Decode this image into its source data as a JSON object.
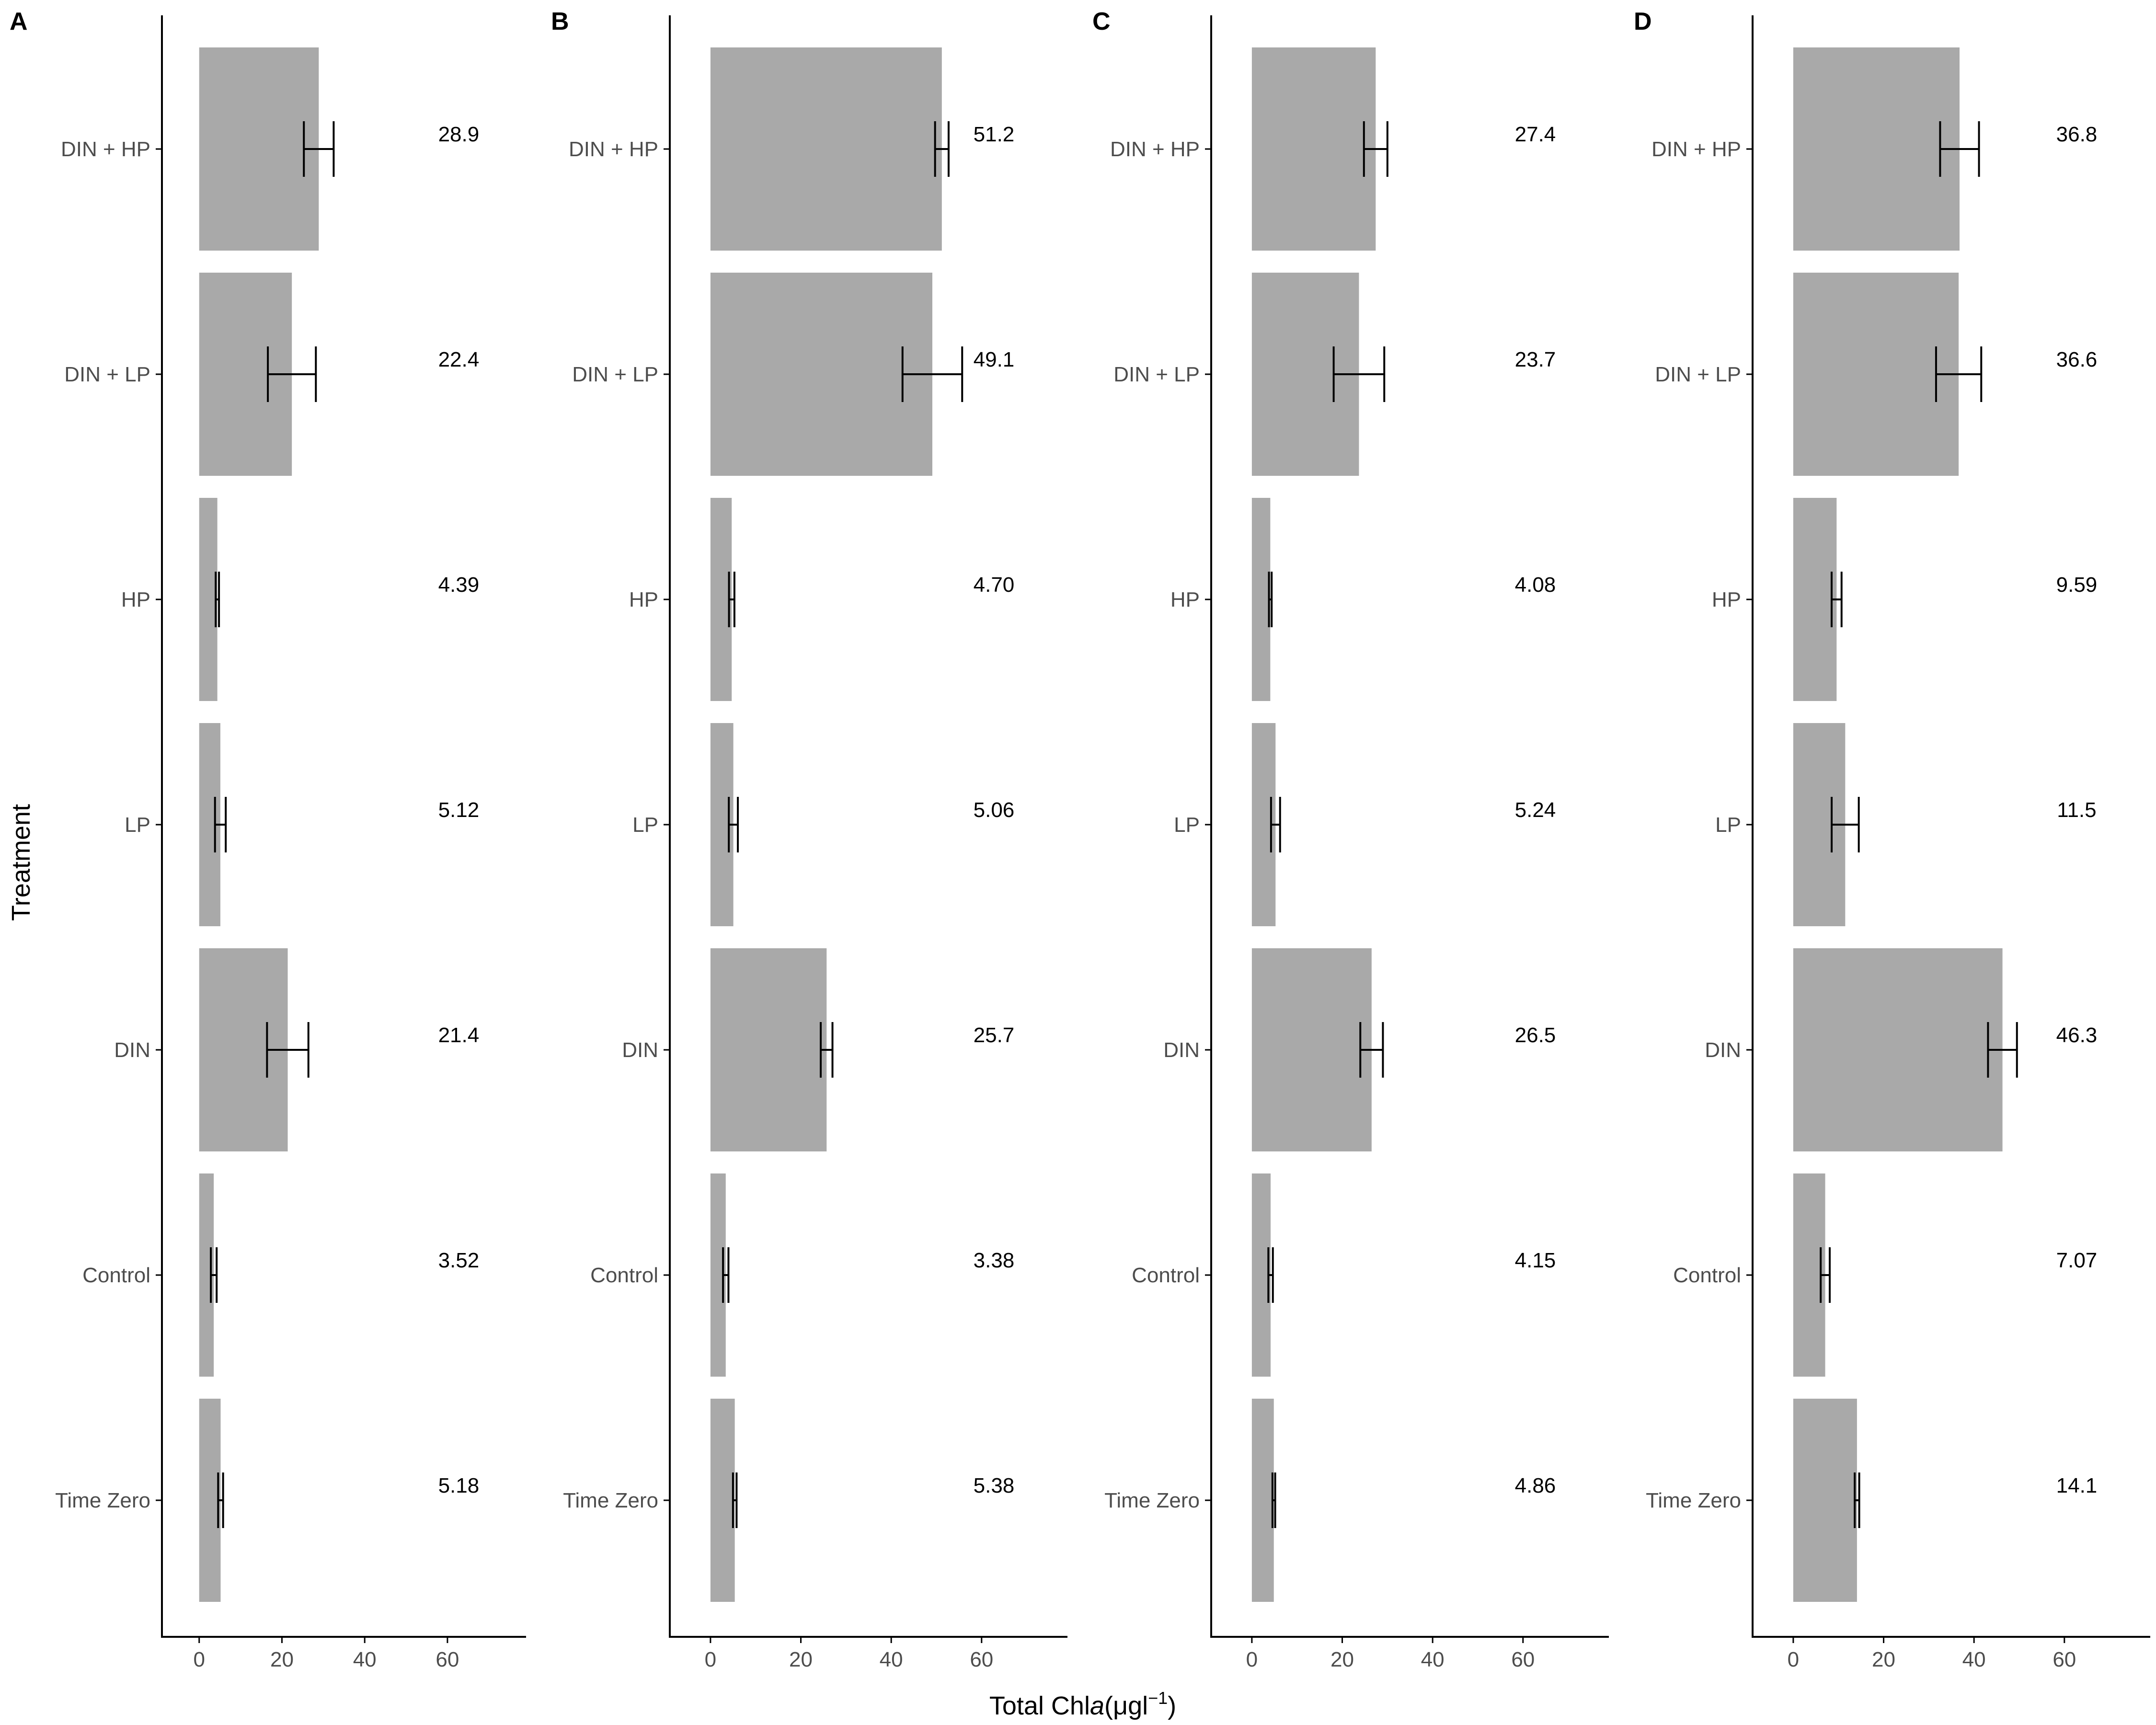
{
  "figure": {
    "ylabel": "Treatment",
    "xlabel": {
      "prefix": "Total Chl",
      "italic": "a",
      "units": "(μgl",
      "exponent": "−1",
      "close": ")"
    }
  },
  "colors": {
    "bar": "#a9a9a9",
    "axis": "#000000",
    "error_bar": "#000000",
    "tick_text": "#4d4d4d"
  },
  "chart_data": [
    {
      "type": "bar",
      "orientation": "horizontal",
      "panel": "A",
      "categories": [
        "Time Zero",
        "Control",
        "DIN",
        "LP",
        "HP",
        "DIN + LP",
        "DIN + HP"
      ],
      "values": [
        5.18,
        3.52,
        21.4,
        5.12,
        4.39,
        22.4,
        28.9
      ],
      "errors": [
        0.6,
        0.7,
        5.0,
        1.3,
        0.4,
        5.8,
        3.6
      ],
      "value_labels": [
        "5.18",
        "3.52",
        "21.4",
        "5.12",
        "4.39",
        "22.4",
        "28.9"
      ],
      "xticks": [
        0,
        20,
        40,
        60
      ],
      "xlim": [
        -9,
        79
      ]
    },
    {
      "type": "bar",
      "orientation": "horizontal",
      "panel": "B",
      "categories": [
        "Time Zero",
        "Control",
        "DIN",
        "LP",
        "HP",
        "DIN + LP",
        "DIN + HP"
      ],
      "values": [
        5.38,
        3.38,
        25.7,
        5.06,
        4.7,
        49.1,
        51.2
      ],
      "errors": [
        0.4,
        0.6,
        1.3,
        1.0,
        0.6,
        6.6,
        1.5
      ],
      "value_labels": [
        "5.38",
        "3.38",
        "25.7",
        "5.06",
        "4.70",
        "49.1",
        "51.2"
      ],
      "xticks": [
        0,
        20,
        40,
        60
      ],
      "xlim": [
        -9,
        79
      ]
    },
    {
      "type": "bar",
      "orientation": "horizontal",
      "panel": "C",
      "categories": [
        "Time Zero",
        "Control",
        "DIN",
        "LP",
        "HP",
        "DIN + LP",
        "DIN + HP"
      ],
      "values": [
        4.86,
        4.15,
        26.5,
        5.24,
        4.08,
        23.7,
        27.4
      ],
      "errors": [
        0.3,
        0.5,
        2.5,
        1.0,
        0.3,
        5.6,
        2.6
      ],
      "value_labels": [
        "4.86",
        "4.15",
        "26.5",
        "5.24",
        "4.08",
        "23.7",
        "27.4"
      ],
      "xticks": [
        0,
        20,
        40,
        60
      ],
      "xlim": [
        -9,
        79
      ]
    },
    {
      "type": "bar",
      "orientation": "horizontal",
      "panel": "D",
      "categories": [
        "Time Zero",
        "Control",
        "DIN",
        "LP",
        "HP",
        "DIN + LP",
        "DIN + HP"
      ],
      "values": [
        14.1,
        7.07,
        46.3,
        11.5,
        9.59,
        36.6,
        36.8
      ],
      "errors": [
        0.5,
        1.0,
        3.2,
        3.0,
        1.1,
        5.0,
        4.3
      ],
      "value_labels": [
        "14.1",
        "7.07",
        "46.3",
        "11.5",
        "9.59",
        "36.6",
        "36.8"
      ],
      "xticks": [
        0,
        20,
        40,
        60
      ],
      "xlim": [
        -9,
        79
      ]
    }
  ]
}
